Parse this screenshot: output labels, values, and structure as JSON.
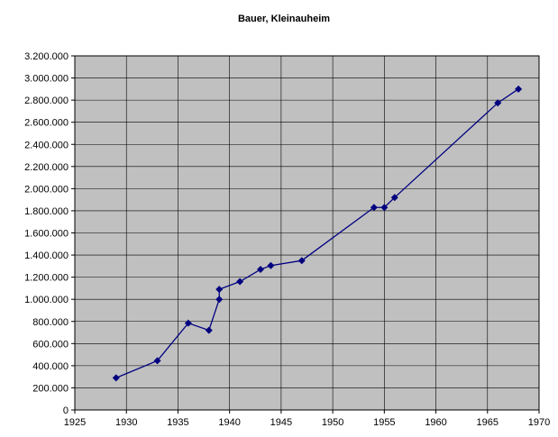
{
  "chart_data": {
    "type": "line",
    "title": "Bauer, Kleinauheim",
    "xlabel": "",
    "ylabel": "",
    "xlim": [
      1925,
      1970
    ],
    "ylim": [
      0,
      3200000
    ],
    "x_ticks": [
      1925,
      1930,
      1935,
      1940,
      1945,
      1950,
      1955,
      1960,
      1965,
      1970
    ],
    "x_tick_labels": [
      "1925",
      "1930",
      "1935",
      "1940",
      "1945",
      "1950",
      "1955",
      "1960",
      "1965",
      "1970"
    ],
    "y_ticks": [
      0,
      200000,
      400000,
      600000,
      800000,
      1000000,
      1200000,
      1400000,
      1600000,
      1800000,
      2000000,
      2200000,
      2400000,
      2600000,
      2800000,
      3000000,
      3200000
    ],
    "y_tick_labels": [
      "0",
      "200.000",
      "400.000",
      "600.000",
      "800.000",
      "1.000.000",
      "1.200.000",
      "1.400.000",
      "1.600.000",
      "1.800.000",
      "2.000.000",
      "2.200.000",
      "2.400.000",
      "2.600.000",
      "2.800.000",
      "3.000.000",
      "3.200.000"
    ],
    "grid": true,
    "series": [
      {
        "color": "#000080",
        "marker": "diamond",
        "points": [
          [
            1929,
            290000
          ],
          [
            1933,
            445000
          ],
          [
            1936,
            785000
          ],
          [
            1938,
            720000
          ],
          [
            1939,
            1000000
          ],
          [
            1939,
            1090000
          ],
          [
            1941,
            1160000
          ],
          [
            1943,
            1270000
          ],
          [
            1944,
            1305000
          ],
          [
            1947,
            1350000
          ],
          [
            1954,
            1830000
          ],
          [
            1955,
            1830000
          ],
          [
            1956,
            1920000
          ],
          [
            1966,
            2775000
          ],
          [
            1968,
            2900000
          ]
        ]
      }
    ],
    "colors": {
      "plot_background": "#c0c0c0",
      "gridlines": "#000000",
      "series_line": "#000080",
      "markers": "#000080"
    }
  }
}
